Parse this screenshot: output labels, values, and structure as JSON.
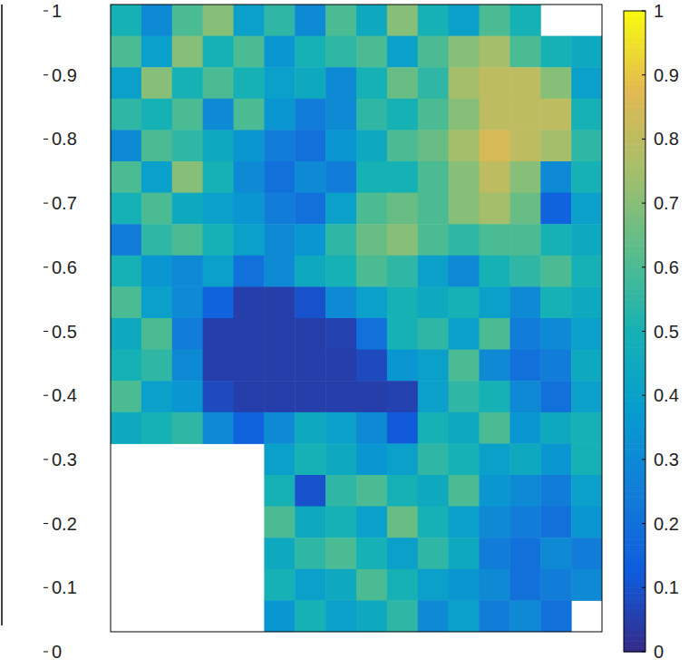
{
  "chart_data": {
    "type": "heatmap",
    "cells": [
      [
        0.5,
        0.3,
        0.6,
        0.7,
        0.4,
        0.55,
        0.3,
        0.6,
        0.45,
        0.7,
        0.5,
        0.4,
        0.6,
        0.5,
        null,
        null
      ],
      [
        0.6,
        0.4,
        0.7,
        0.5,
        0.6,
        0.35,
        0.5,
        0.55,
        0.6,
        0.4,
        0.6,
        0.7,
        0.75,
        0.6,
        0.5,
        0.45
      ],
      [
        0.4,
        0.7,
        0.5,
        0.6,
        0.5,
        0.4,
        0.45,
        0.3,
        0.5,
        0.65,
        0.55,
        0.75,
        0.8,
        0.8,
        0.7,
        0.4
      ],
      [
        0.55,
        0.5,
        0.6,
        0.3,
        0.6,
        0.35,
        0.25,
        0.3,
        0.55,
        0.5,
        0.6,
        0.7,
        0.8,
        0.8,
        0.8,
        0.5
      ],
      [
        0.3,
        0.6,
        0.55,
        0.45,
        0.35,
        0.25,
        0.2,
        0.35,
        0.45,
        0.6,
        0.65,
        0.75,
        0.85,
        0.8,
        0.75,
        0.55
      ],
      [
        0.6,
        0.4,
        0.7,
        0.5,
        0.3,
        0.2,
        0.3,
        0.25,
        0.5,
        0.5,
        0.6,
        0.7,
        0.8,
        0.7,
        0.3,
        0.5
      ],
      [
        0.5,
        0.6,
        0.45,
        0.4,
        0.35,
        0.25,
        0.2,
        0.4,
        0.6,
        0.65,
        0.6,
        0.7,
        0.75,
        0.65,
        0.15,
        0.4
      ],
      [
        0.25,
        0.55,
        0.6,
        0.5,
        0.4,
        0.3,
        0.35,
        0.55,
        0.65,
        0.7,
        0.6,
        0.55,
        0.6,
        0.6,
        0.5,
        0.45
      ],
      [
        0.5,
        0.35,
        0.3,
        0.4,
        0.2,
        0.3,
        0.45,
        0.5,
        0.6,
        0.55,
        0.4,
        0.3,
        0.5,
        0.55,
        0.6,
        0.5
      ],
      [
        0.6,
        0.4,
        0.3,
        0.15,
        0.05,
        0.05,
        0.1,
        0.3,
        0.4,
        0.5,
        0.45,
        0.5,
        0.4,
        0.3,
        0.5,
        0.45
      ],
      [
        0.45,
        0.6,
        0.25,
        0.05,
        0.05,
        0.05,
        0.05,
        0.06,
        0.2,
        0.5,
        0.55,
        0.4,
        0.6,
        0.25,
        0.3,
        0.4
      ],
      [
        0.5,
        0.55,
        0.3,
        0.05,
        0.05,
        0.05,
        0.05,
        0.05,
        0.08,
        0.35,
        0.4,
        0.6,
        0.3,
        0.2,
        0.25,
        0.45
      ],
      [
        0.6,
        0.4,
        0.35,
        0.08,
        0.05,
        0.05,
        0.05,
        0.05,
        0.05,
        0.06,
        0.4,
        0.55,
        0.5,
        0.3,
        0.2,
        0.4
      ],
      [
        0.45,
        0.5,
        0.55,
        0.3,
        0.15,
        0.3,
        0.45,
        0.4,
        0.3,
        0.12,
        0.5,
        0.45,
        0.6,
        0.35,
        0.45,
        0.5
      ],
      [
        null,
        null,
        null,
        null,
        null,
        0.4,
        0.5,
        0.45,
        0.35,
        0.4,
        0.55,
        0.5,
        0.4,
        0.45,
        0.35,
        0.5
      ],
      [
        null,
        null,
        null,
        null,
        null,
        0.5,
        0.1,
        0.55,
        0.6,
        0.5,
        0.45,
        0.6,
        0.35,
        0.3,
        0.25,
        0.4
      ],
      [
        null,
        null,
        null,
        null,
        null,
        0.6,
        0.45,
        0.5,
        0.4,
        0.65,
        0.5,
        0.4,
        0.3,
        0.25,
        0.2,
        0.35
      ],
      [
        null,
        null,
        null,
        null,
        null,
        0.45,
        0.55,
        0.6,
        0.5,
        0.4,
        0.55,
        0.45,
        0.25,
        0.2,
        0.3,
        0.25
      ],
      [
        null,
        null,
        null,
        null,
        null,
        0.5,
        0.4,
        0.45,
        0.6,
        0.5,
        0.4,
        0.35,
        0.3,
        0.2,
        0.25,
        0.3
      ],
      [
        null,
        null,
        null,
        null,
        null,
        0.35,
        0.5,
        0.4,
        0.45,
        0.55,
        0.3,
        0.4,
        0.25,
        0.3,
        0.2,
        null
      ]
    ],
    "colorbars": [
      {
        "range": [
          0,
          1
        ],
        "ticks": [
          0,
          0.1,
          0.2,
          0.3,
          0.4,
          0.5,
          0.6,
          0.7,
          0.8,
          0.9,
          1
        ]
      },
      {
        "range": [
          0,
          1
        ],
        "ticks": [
          0,
          0.1,
          0.2,
          0.3,
          0.4,
          0.5,
          0.6,
          0.7,
          0.8,
          0.9,
          1
        ]
      }
    ]
  }
}
